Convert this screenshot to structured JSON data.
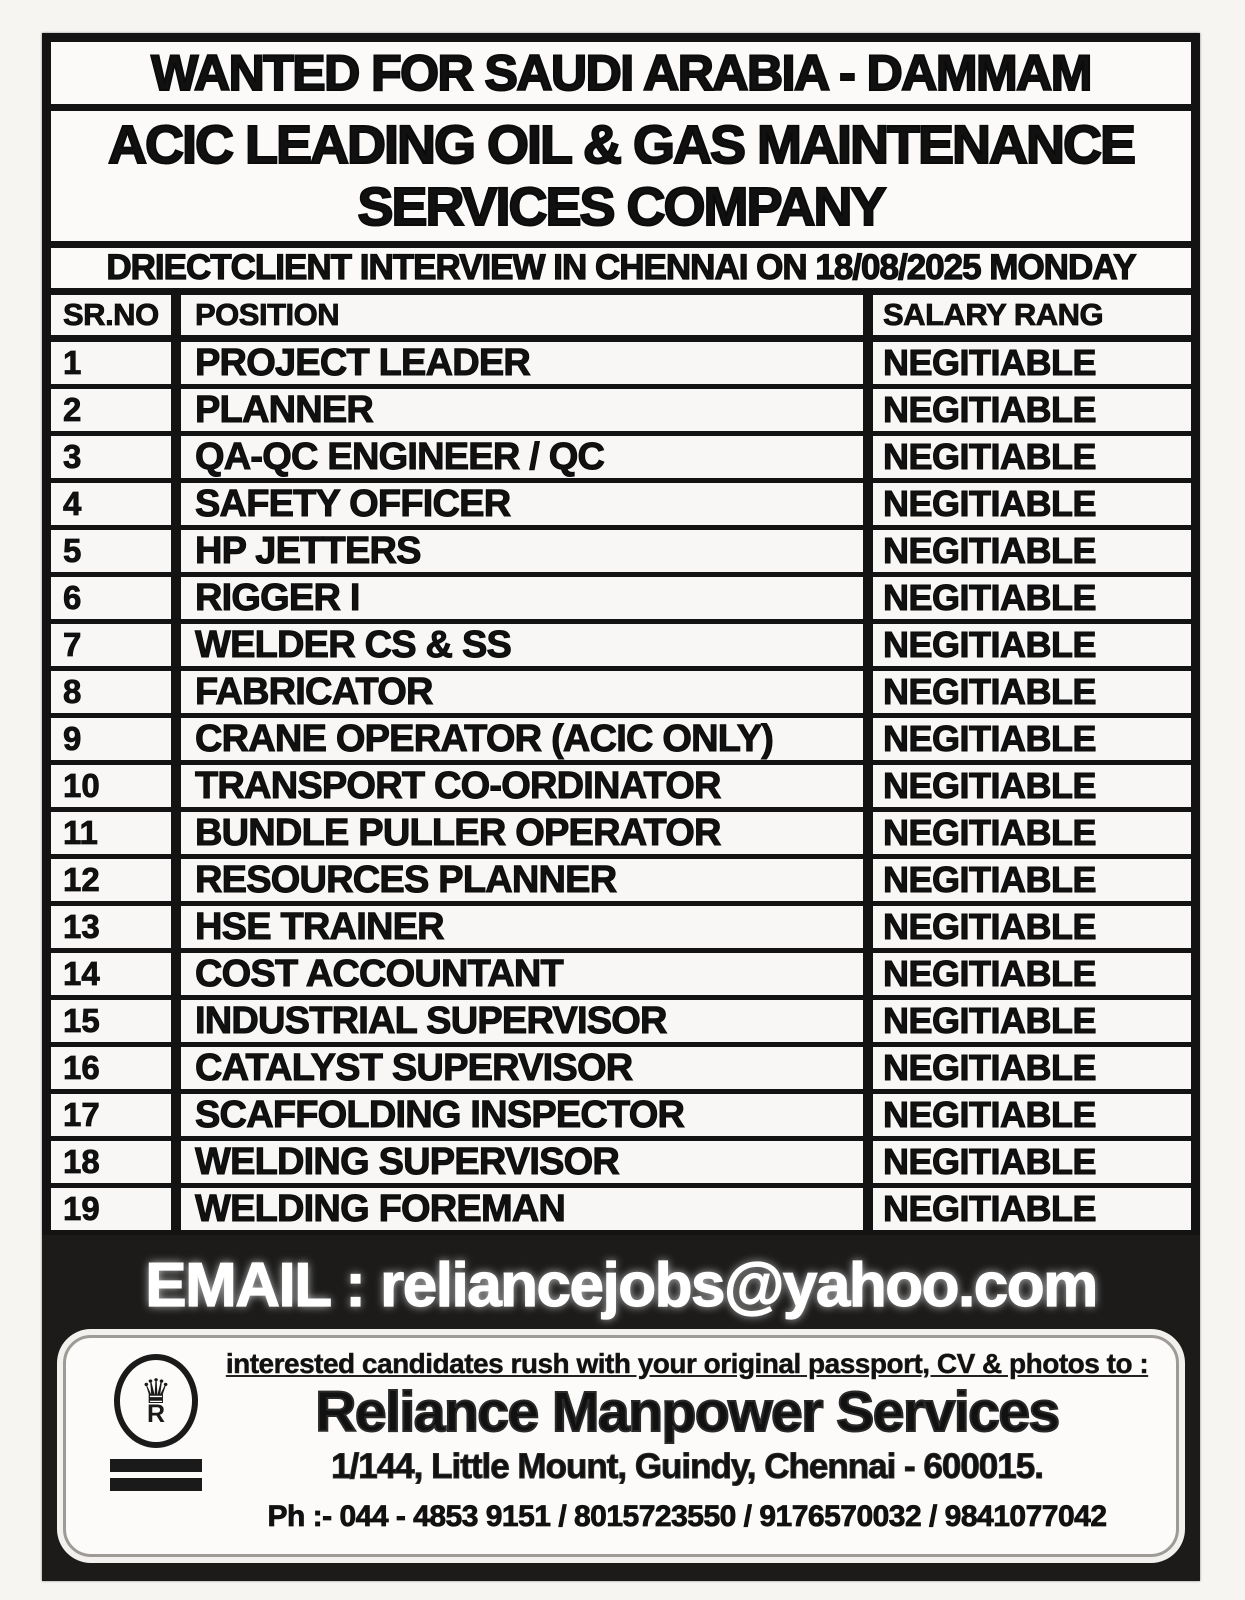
{
  "header": {
    "title1": "WANTED FOR SAUDI ARABIA - DAMMAM",
    "title2_line1": "ACIC LEADING OIL & GAS MAINTENANCE",
    "title2_line2": "SERVICES COMPANY",
    "interview_banner": "DRIECTCLIENT INTERVIEW IN CHENNAI ON 18/08/2025 MONDAY"
  },
  "table": {
    "columns": [
      "SR.NO",
      "POSITION",
      "SALARY RANG"
    ],
    "rows": [
      {
        "sr": "1",
        "position": "PROJECT LEADER",
        "salary": "NEGITIABLE"
      },
      {
        "sr": "2",
        "position": "PLANNER",
        "salary": "NEGITIABLE"
      },
      {
        "sr": "3",
        "position": "QA-QC ENGINEER / QC",
        "salary": "NEGITIABLE"
      },
      {
        "sr": "4",
        "position": "SAFETY OFFICER",
        "salary": "NEGITIABLE"
      },
      {
        "sr": "5",
        "position": "HP JETTERS",
        "salary": "NEGITIABLE"
      },
      {
        "sr": "6",
        "position": "RIGGER I",
        "salary": "NEGITIABLE"
      },
      {
        "sr": "7",
        "position": "WELDER CS & SS",
        "salary": "NEGITIABLE"
      },
      {
        "sr": "8",
        "position": "FABRICATOR",
        "salary": "NEGITIABLE"
      },
      {
        "sr": "9",
        "position": "CRANE OPERATOR (ACIC ONLY)",
        "salary": "NEGITIABLE"
      },
      {
        "sr": "10",
        "position": "TRANSPORT CO-ORDINATOR",
        "salary": "NEGITIABLE"
      },
      {
        "sr": "11",
        "position": "BUNDLE PULLER OPERATOR",
        "salary": "NEGITIABLE"
      },
      {
        "sr": "12",
        "position": "RESOURCES PLANNER",
        "salary": "NEGITIABLE"
      },
      {
        "sr": "13",
        "position": "HSE TRAINER",
        "salary": "NEGITIABLE"
      },
      {
        "sr": "14",
        "position": "COST ACCOUNTANT",
        "salary": "NEGITIABLE"
      },
      {
        "sr": "15",
        "position": "INDUSTRIAL SUPERVISOR",
        "salary": "NEGITIABLE"
      },
      {
        "sr": "16",
        "position": "CATALYST SUPERVISOR",
        "salary": "NEGITIABLE"
      },
      {
        "sr": "17",
        "position": "SCAFFOLDING INSPECTOR",
        "salary": "NEGITIABLE"
      },
      {
        "sr": "18",
        "position": "WELDING SUPERVISOR",
        "salary": "NEGITIABLE"
      },
      {
        "sr": "19",
        "position": "WELDING FOREMAN",
        "salary": "NEGITIABLE"
      }
    ]
  },
  "email": {
    "label": "EMAIL : reliancejobs@yahoo.com"
  },
  "footer": {
    "notice": "interested candidates rush with your original passport, CV & photos to :",
    "company": "Reliance Manpower Services",
    "address": "1/144, Little Mount, Guindy, Chennai - 600015.",
    "phone": "Ph :- 044 - 4853 9151 / 8015723550 / 9176570032 / 9841077042",
    "logo_letter": "R"
  },
  "colors": {
    "ink": "#111111",
    "paper": "#f8f7f5",
    "frame_black": "#141313",
    "email_text": "#ffffff"
  }
}
